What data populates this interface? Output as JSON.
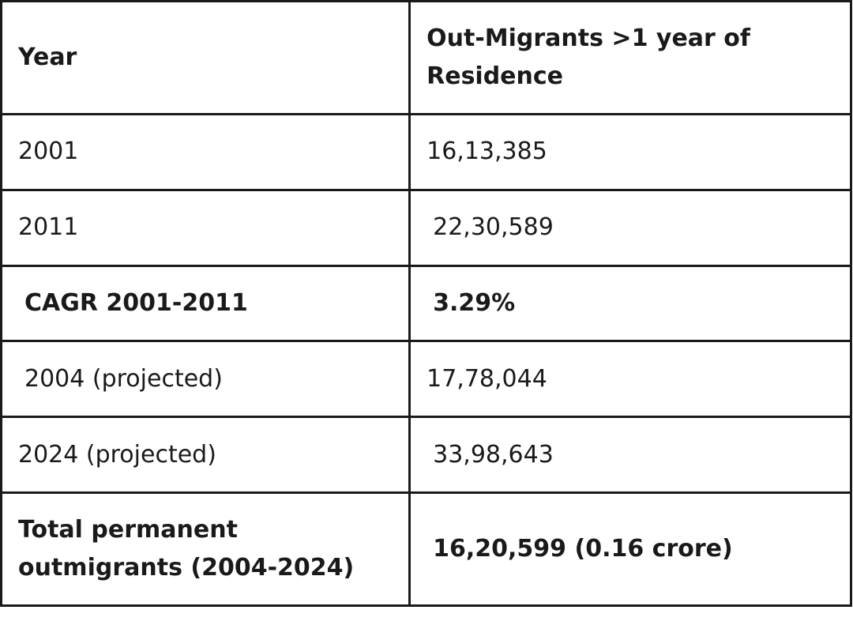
{
  "table": {
    "headers": {
      "year": "Year",
      "outmigrants": "Out-Migrants >1 year of Residence"
    },
    "rows": [
      {
        "year": "2001",
        "value": "16,13,385"
      },
      {
        "year": "2011",
        "value": "22,30,589"
      },
      {
        "year": "CAGR 2001-2011",
        "value": "3.29%"
      },
      {
        "year": "2004 (projected)",
        "value": "17,78,044"
      },
      {
        "year": "2024 (projected)",
        "value": "33,98,643"
      },
      {
        "year": "Total permanent outmigrants (2004-2024)",
        "value": "16,20,599 (0.16 crore)"
      }
    ]
  }
}
